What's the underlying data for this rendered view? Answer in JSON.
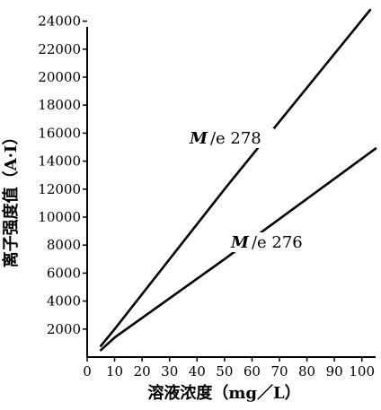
{
  "chart_data": {
    "type": "line",
    "title": "",
    "xlabel": "溶液浓度（mg／L）",
    "ylabel": "离子强度值（A·I）",
    "xlim": [
      0,
      105
    ],
    "ylim": [
      0,
      25000
    ],
    "x_ticks": [
      "0",
      "10",
      "20",
      "30",
      "40",
      "50",
      "60",
      "70",
      "80",
      "90",
      "100"
    ],
    "y_ticks": [
      "2000",
      "4000",
      "6000",
      "8000",
      "10000",
      "12000",
      "14000",
      "16000",
      "18000",
      "20000",
      "22000",
      "24000"
    ],
    "grid": false,
    "legend": "none",
    "series": [
      {
        "name": "M/e 278",
        "label_m": "M",
        "label_rest": "/e 278",
        "points": [
          [
            5,
            800
          ],
          [
            10,
            2000
          ],
          [
            50,
            12000
          ],
          [
            103,
            24800
          ]
        ]
      },
      {
        "name": "M/e 276",
        "label_m": "M",
        "label_rest": "/e 276",
        "points": [
          [
            5,
            500
          ],
          [
            10,
            1400
          ],
          [
            50,
            7000
          ],
          [
            105,
            14900
          ]
        ]
      }
    ]
  }
}
